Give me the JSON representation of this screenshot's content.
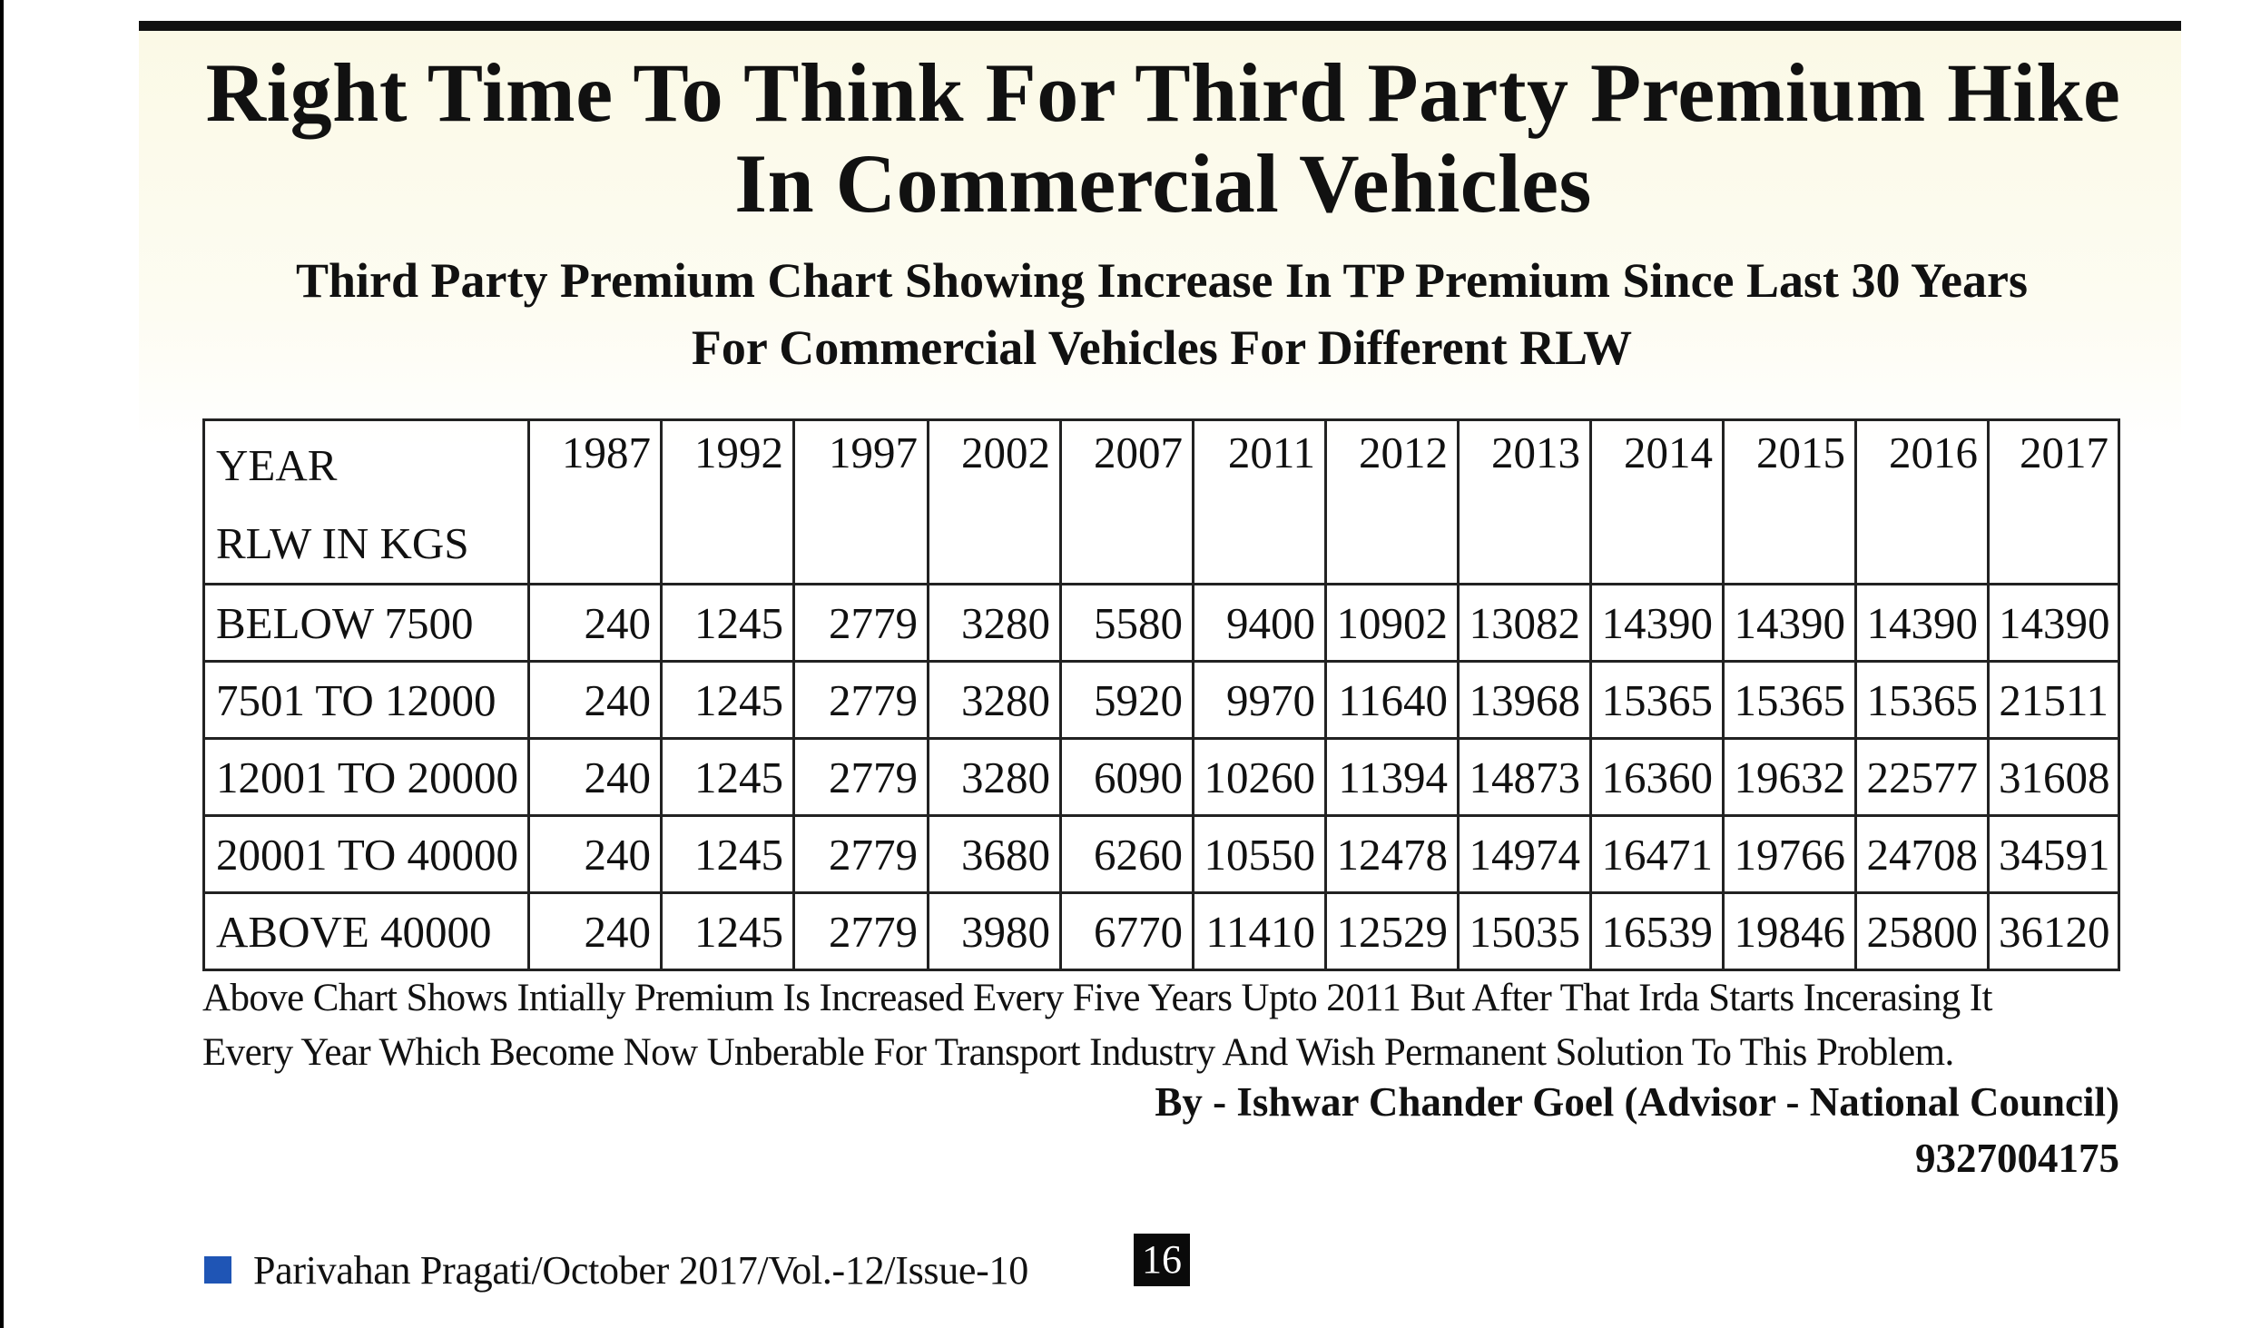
{
  "title_line1": "Right Time To Think For Third Party Premium Hike",
  "title_line2": "In Commercial Vehicles",
  "subtitle_line1": "Third Party Premium Chart Showing Increase In TP Premium Since Last 30 Years",
  "subtitle_line2": "For Commercial Vehicles For Different RLW",
  "table": {
    "header_label_line1": "YEAR",
    "header_label_line2": "RLW IN KGS",
    "years": [
      "1987",
      "1992",
      "1997",
      "2002",
      "2007",
      "2011",
      "2012",
      "2013",
      "2014",
      "2015",
      "2016",
      "2017"
    ],
    "rows": [
      {
        "label": "BELOW 7500",
        "values": [
          "240",
          "1245",
          "2779",
          "3280",
          "5580",
          "9400",
          "10902",
          "13082",
          "14390",
          "14390",
          "14390",
          "14390"
        ]
      },
      {
        "label": "7501 TO 12000",
        "values": [
          "240",
          "1245",
          "2779",
          "3280",
          "5920",
          "9970",
          "11640",
          "13968",
          "15365",
          "15365",
          "15365",
          "21511"
        ]
      },
      {
        "label": "12001 TO 20000",
        "values": [
          "240",
          "1245",
          "2779",
          "3280",
          "6090",
          "10260",
          "11394",
          "14873",
          "16360",
          "19632",
          "22577",
          "31608"
        ]
      },
      {
        "label": "20001 TO 40000",
        "values": [
          "240",
          "1245",
          "2779",
          "3680",
          "6260",
          "10550",
          "12478",
          "14974",
          "16471",
          "19766",
          "24708",
          "34591"
        ]
      },
      {
        "label": "ABOVE 40000",
        "values": [
          "240",
          "1245",
          "2779",
          "3980",
          "6770",
          "11410",
          "12529",
          "15035",
          "16539",
          "19846",
          "25800",
          "36120"
        ]
      }
    ]
  },
  "note_line1": "Above Chart Shows Intially Premium Is Increased Every Five Years Upto 2011 But After That Irda Starts Incerasing It",
  "note_line2": "Every Year Which Become Now Unberable For Transport Industry And Wish Permanent Solution To This Problem.",
  "byline": "By - Ishwar Chander Goel (Advisor - National Council)",
  "phone": "9327004175",
  "footer": {
    "publication": "Parivahan Pragati/October 2017/Vol.-12/Issue-10",
    "page_number": "16",
    "marker_color": "#1f55b5"
  }
}
